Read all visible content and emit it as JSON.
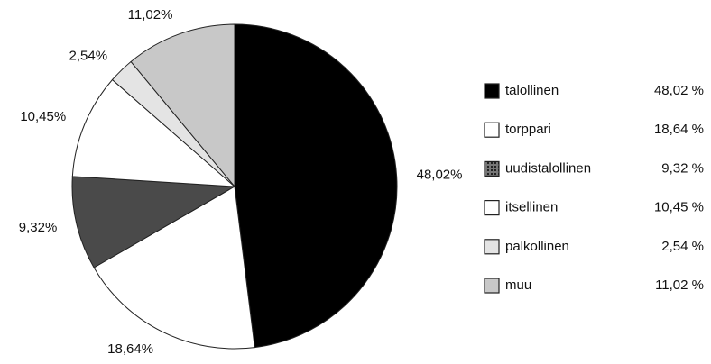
{
  "chart_data": {
    "type": "pie",
    "categories": [
      "talollinen",
      "torppari",
      "uudistalollinen",
      "itsellinen",
      "palkollinen",
      "muu"
    ],
    "values": [
      48.02,
      18.64,
      9.32,
      10.45,
      2.54,
      11.02
    ],
    "value_labels": [
      "48,02%",
      "18,64%",
      "9,32%",
      "10,45%",
      "2,54%",
      "11,02%"
    ],
    "legend_labels": [
      "48,02 %",
      "18,64 %",
      "9,32 %",
      "10,45 %",
      "2,54 %",
      "11,02 %"
    ],
    "colors": [
      "#000000",
      "#ffffff",
      "#4a4a4a",
      "#ffffff",
      "#e4e4e4",
      "#c8c8c8"
    ]
  }
}
